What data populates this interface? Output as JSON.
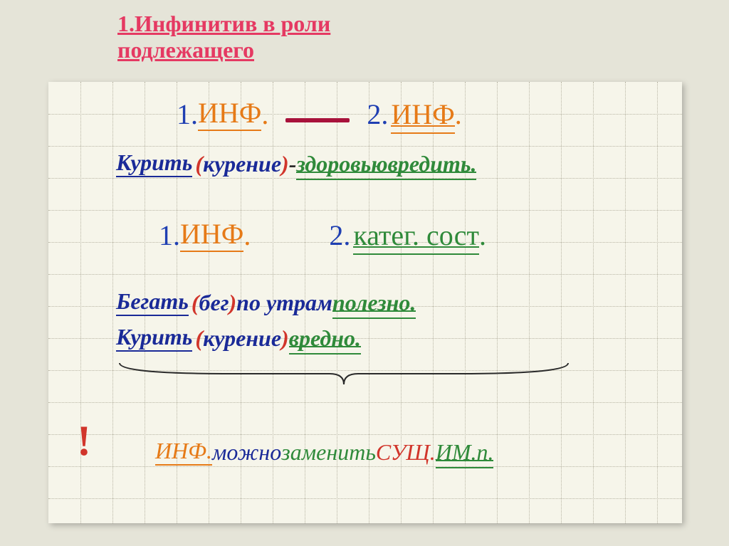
{
  "title": {
    "line1": "1.Инфинитив в роли",
    "line2": "подлежащего",
    "color": "#e53962",
    "fontsize": 32
  },
  "paper": {
    "background": "#f6f5ea",
    "grid_color": "#b9b6a5",
    "hline_spacing": 45,
    "vline_spacing": 45
  },
  "formula1": {
    "left_num": "1.",
    "left_label": "ИНФ",
    "left_dot": ".",
    "right_num": "2.",
    "right_label": "ИНФ",
    "right_dot": ".",
    "colors": {
      "num": "#1f3fb2",
      "left": "#e67a17",
      "right": "#e67a17"
    }
  },
  "example1": {
    "subject": "Курить",
    "paren_open": "(",
    "paren_word": "курение",
    "paren_close": ")",
    "dash": " - ",
    "pred1": " здоровью ",
    "pred2": "вредить.",
    "colors": {
      "subject": "#1a2a98",
      "paren": "#d1352b",
      "pred": "#2f8a3a"
    }
  },
  "formula2": {
    "left_num": "1.",
    "left_label": "ИНФ",
    "left_dot": ".",
    "right_num": "2.",
    "right_label": "катег. сост",
    "right_dot": ".",
    "colors": {
      "num": "#1f3fb2",
      "left": "#e67a17",
      "right": "#2f8a3a"
    }
  },
  "example2a": {
    "subject": "Бегать",
    "paren_open": "(",
    "paren_word": "бег",
    "paren_close": ")",
    "mid": " по утрам ",
    "pred": "полезно."
  },
  "example2b": {
    "subject": "Курить",
    "paren_open": "(",
    "paren_word": "курение",
    "paren_close": ")",
    "pred": " вредно."
  },
  "note": {
    "exclaim": "!",
    "w1": "ИНФ.",
    "w2": " можно ",
    "w3": "заменить ",
    "w4": "СУЩ. ",
    "w5": "ИМ.п.",
    "colors": {
      "w1": "#e67a17",
      "w2": "#1f3fb2",
      "w3": "#2f8a3a",
      "w4": "#d1352b",
      "w5": "#2f8a3a"
    }
  },
  "styles": {
    "big_fontsize": 40,
    "med_fontsize": 32,
    "dash_color": "#a8123b",
    "brace_color": "#2a2a2a"
  }
}
